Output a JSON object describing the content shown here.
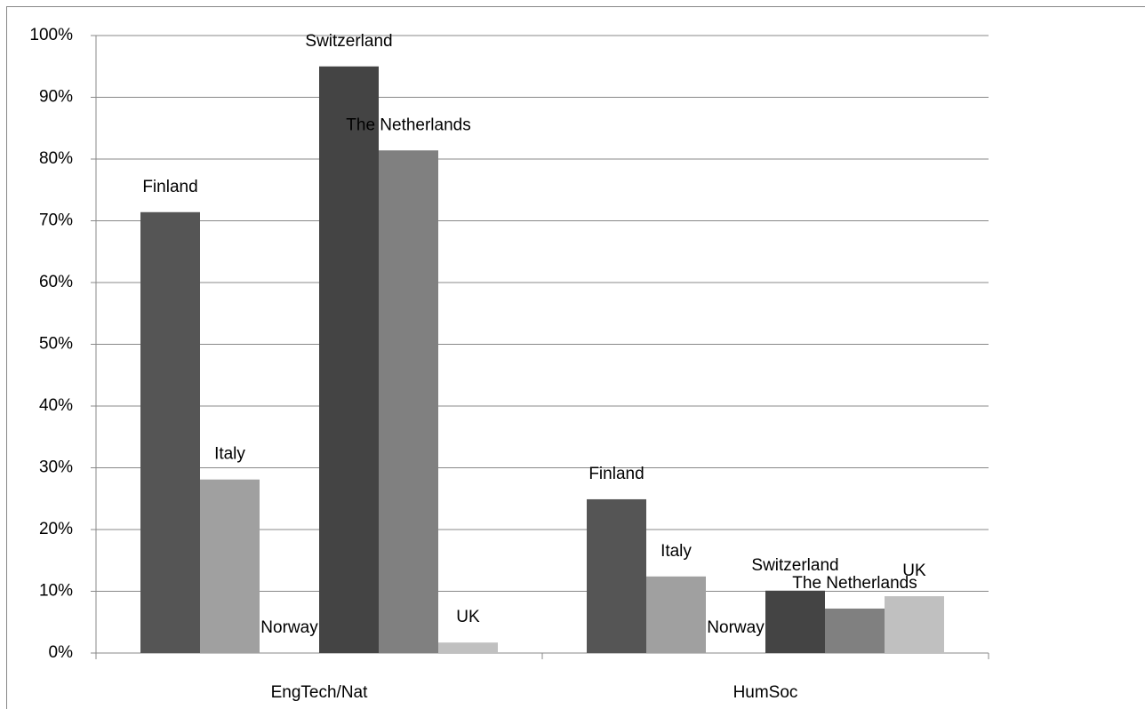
{
  "chart_data": {
    "type": "bar",
    "categories": [
      "EngTech/Nat",
      "HumSoc"
    ],
    "series": [
      {
        "name": "Finland",
        "color": "#555555",
        "values": [
          71.4,
          24.9
        ]
      },
      {
        "name": "Italy",
        "color": "#a0a0a0",
        "values": [
          28.1,
          12.4
        ]
      },
      {
        "name": "Norway",
        "color": "#6e6e6e",
        "values": [
          0,
          0
        ]
      },
      {
        "name": "Switzerland",
        "color": "#444444",
        "values": [
          95.0,
          10.1
        ]
      },
      {
        "name": "The Netherlands",
        "color": "#808080",
        "values": [
          81.4,
          7.2
        ]
      },
      {
        "name": "UK",
        "color": "#c0c0c0",
        "values": [
          1.7,
          9.2
        ]
      }
    ],
    "ylim": [
      0,
      100
    ],
    "yticks": [
      {
        "value": 0,
        "label": "0%"
      },
      {
        "value": 10,
        "label": "10%"
      },
      {
        "value": 20,
        "label": "20%"
      },
      {
        "value": 30,
        "label": "30%"
      },
      {
        "value": 40,
        "label": "40%"
      },
      {
        "value": 50,
        "label": "50%"
      },
      {
        "value": 60,
        "label": "60%"
      },
      {
        "value": 70,
        "label": "70%"
      },
      {
        "value": 80,
        "label": "80%"
      },
      {
        "value": 90,
        "label": "90%"
      },
      {
        "value": 100,
        "label": "100%"
      }
    ],
    "grid": true
  }
}
